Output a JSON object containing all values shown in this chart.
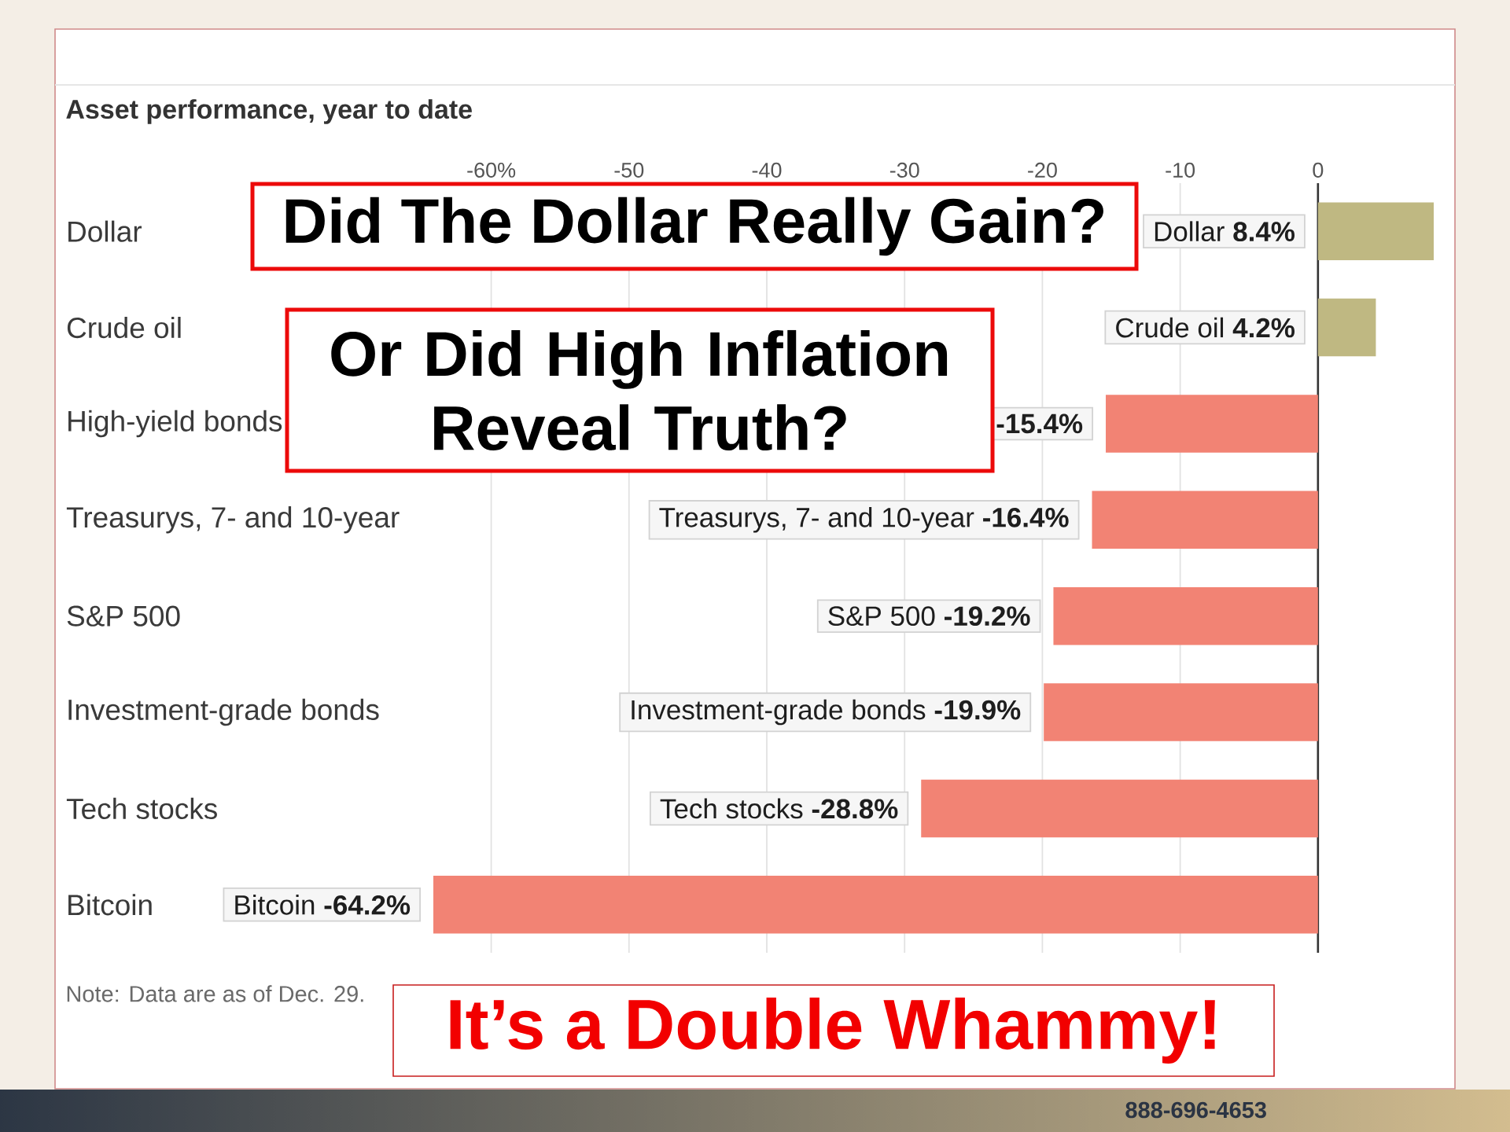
{
  "chart_data": {
    "type": "bar",
    "orientation": "horizontal",
    "title": "Asset performance, year to date",
    "categories": [
      "Dollar",
      "Crude oil",
      "High-yield bonds",
      "Treasurys, 7- and 10-year",
      "S&P 500",
      "Investment-grade bonds",
      "Tech stocks",
      "Bitcoin"
    ],
    "values": [
      8.4,
      4.2,
      -15.4,
      -16.4,
      -19.2,
      -19.9,
      -28.8,
      -64.2
    ],
    "colors": [
      "#bfb882",
      "#bfb882",
      "#f28374",
      "#f28374",
      "#f28374",
      "#f28374",
      "#f28374",
      "#f28374"
    ],
    "value_labels": [
      "Dollar **8.4%**",
      "Crude oil **4.2%**",
      "**-15.4%**",
      "Treasurys, 7- and 10-year **-16.4%**",
      "S&P 500 **-19.2%**",
      "Investment-grade bonds **-19.9%**",
      "Tech stocks **-28.8%**",
      "Bitcoin **-64.2%**"
    ],
    "xlim": [
      -64.2,
      8.4
    ],
    "xticks": [
      {
        "value": -60,
        "label": "-60%"
      },
      -50,
      -40,
      -30,
      -20,
      -10,
      0
    ],
    "grid": "x",
    "annotations": [
      "Did The Dollar Really Gain?",
      "Or Did High Inflation Reveal Truth?",
      "It’s a Double Whammy!",
      "Note: Data are as of Dec. 29.",
      "888-696-4653"
    ]
  }
}
